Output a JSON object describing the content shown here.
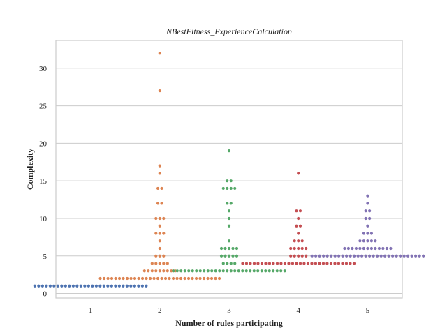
{
  "chart_data": {
    "type": "scatter",
    "subtype": "swarm",
    "title": "NBestFitness_ExperienceCalculation",
    "xlabel": "Number of rules participating",
    "ylabel": "Complexity",
    "categories": [
      "1",
      "2",
      "3",
      "4",
      "5"
    ],
    "ylim": [
      -0.6,
      33.7
    ],
    "yticks": [
      0,
      5,
      10,
      15,
      20,
      25,
      30
    ],
    "grid": "horizontal",
    "series": [
      {
        "category": "1",
        "color": "#4c72b0",
        "counts": [
          {
            "y": 1,
            "n": 30
          }
        ]
      },
      {
        "category": "2",
        "color": "#dd8452",
        "counts": [
          {
            "y": 2,
            "n": 32
          },
          {
            "y": 3,
            "n": 9
          },
          {
            "y": 4,
            "n": 5
          },
          {
            "y": 5,
            "n": 3
          },
          {
            "y": 6,
            "n": 1
          },
          {
            "y": 7,
            "n": 1
          },
          {
            "y": 8,
            "n": 3
          },
          {
            "y": 9,
            "n": 1
          },
          {
            "y": 10,
            "n": 3
          },
          {
            "y": 12,
            "n": 2
          },
          {
            "y": 14,
            "n": 2
          },
          {
            "y": 16,
            "n": 1
          },
          {
            "y": 17,
            "n": 1
          },
          {
            "y": 27,
            "n": 1
          },
          {
            "y": 32,
            "n": 1
          }
        ]
      },
      {
        "category": "3",
        "color": "#55a868",
        "counts": [
          {
            "y": 3,
            "n": 30
          },
          {
            "y": 4,
            "n": 4
          },
          {
            "y": 5,
            "n": 5
          },
          {
            "y": 6,
            "n": 5
          },
          {
            "y": 7,
            "n": 1
          },
          {
            "y": 9,
            "n": 1
          },
          {
            "y": 10,
            "n": 1
          },
          {
            "y": 11,
            "n": 1
          },
          {
            "y": 12,
            "n": 2
          },
          {
            "y": 14,
            "n": 4
          },
          {
            "y": 15,
            "n": 2
          },
          {
            "y": 19,
            "n": 1
          }
        ]
      },
      {
        "category": "4",
        "color": "#c44e52",
        "counts": [
          {
            "y": 4,
            "n": 30
          },
          {
            "y": 5,
            "n": 5
          },
          {
            "y": 6,
            "n": 5
          },
          {
            "y": 7,
            "n": 3
          },
          {
            "y": 8,
            "n": 1
          },
          {
            "y": 9,
            "n": 2
          },
          {
            "y": 10,
            "n": 1
          },
          {
            "y": 11,
            "n": 2
          },
          {
            "y": 16,
            "n": 1
          }
        ]
      },
      {
        "category": "5",
        "color": "#8172b3",
        "counts": [
          {
            "y": 5,
            "n": 30
          },
          {
            "y": 6,
            "n": 13
          },
          {
            "y": 7,
            "n": 5
          },
          {
            "y": 8,
            "n": 3
          },
          {
            "y": 9,
            "n": 1
          },
          {
            "y": 10,
            "n": 2
          },
          {
            "y": 11,
            "n": 2
          },
          {
            "y": 12,
            "n": 1
          },
          {
            "y": 13,
            "n": 1
          }
        ]
      }
    ]
  }
}
